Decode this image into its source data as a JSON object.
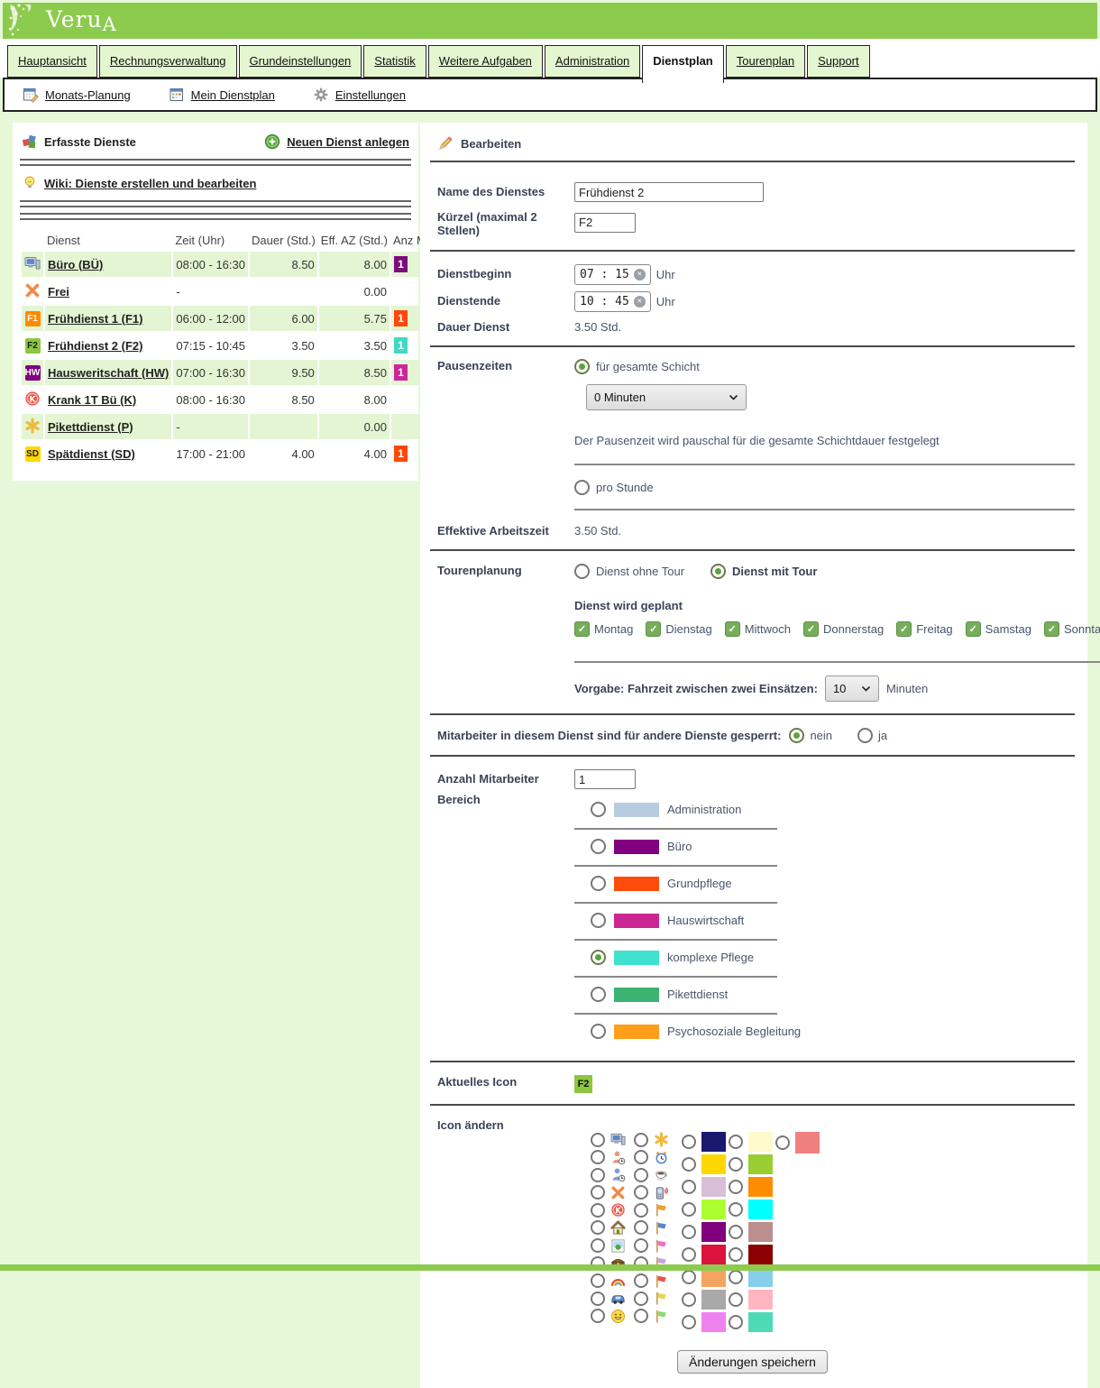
{
  "header": {
    "logo": "VeruA"
  },
  "tabs": [
    {
      "label": "Hauptansicht",
      "active": false
    },
    {
      "label": "Rechnungsverwaltung",
      "active": false
    },
    {
      "label": "Grundeinstellungen",
      "active": false
    },
    {
      "label": "Statistik",
      "active": false
    },
    {
      "label": "Weitere Aufgaben",
      "active": false
    },
    {
      "label": "Administration",
      "active": false
    },
    {
      "label": "Dienstplan",
      "active": true
    },
    {
      "label": "Tourenplan",
      "active": false
    },
    {
      "label": "Support",
      "active": false
    }
  ],
  "subnav": [
    {
      "label": "Monats-Planung",
      "icon": "calendar-edit"
    },
    {
      "label": "Mein Dienstplan",
      "icon": "calendar"
    },
    {
      "label": "Einstellungen",
      "icon": "gear"
    }
  ],
  "left_panel": {
    "title": "Erfasste Dienste",
    "new_link": "Neuen Dienst anlegen",
    "wiki_link": "Wiki: Dienste erstellen und bearbeiten",
    "table": {
      "headers": [
        "Dienst",
        "Zeit (Uhr)",
        "Dauer (Std.)",
        "Eff. AZ (Std.)",
        "Anz MA"
      ],
      "rows": [
        {
          "icon": "computer",
          "name": "Büro (BÜ)",
          "zeit": "08:00 - 16:30",
          "dauer": "8.50",
          "eff": "8.00",
          "badge": "1",
          "badge_color": "#7b0e7b"
        },
        {
          "icon": "x",
          "name": "Frei",
          "zeit": "-",
          "dauer": "",
          "eff": "0.00",
          "badge": "",
          "badge_color": ""
        },
        {
          "icon": "sq:F1:#ff8a00:#ffffff",
          "name": "Frühdienst 1 (F1)",
          "zeit": "06:00 - 12:00",
          "dauer": "6.00",
          "eff": "5.75",
          "badge": "1",
          "badge_color": "#ff4708"
        },
        {
          "icon": "sq:F2:#8dc63f:#1c1c1c",
          "name": "Frühdienst 2 (F2)",
          "zeit": "07:15 - 10:45",
          "dauer": "3.50",
          "eff": "3.50",
          "badge": "1",
          "badge_color": "#3fd9c5"
        },
        {
          "icon": "sq:HW:#800080:#ffffff",
          "name": "Hausweritschaft (HW)",
          "zeit": "07:00 - 16:30",
          "dauer": "9.50",
          "eff": "8.50",
          "badge": "1",
          "badge_color": "#cc2699"
        },
        {
          "icon": "k",
          "name": "Krank 1T Bü (K)",
          "zeit": "08:00 - 16:30",
          "dauer": "8.50",
          "eff": "8.00",
          "badge": "",
          "badge_color": ""
        },
        {
          "icon": "asterisk",
          "name": "Pikettdienst (P)",
          "zeit": "-",
          "dauer": "",
          "eff": "0.00",
          "badge": "",
          "badge_color": ""
        },
        {
          "icon": "sq:SD:#ffd700:#1c1c1c",
          "name": "Spätdienst (SD)",
          "zeit": "17:00 - 21:00",
          "dauer": "4.00",
          "eff": "4.00",
          "badge": "1",
          "badge_color": "#ff4708"
        }
      ]
    }
  },
  "form": {
    "title": "Bearbeiten",
    "name_label": "Name des Dienstes",
    "name_value": "Frühdienst 2",
    "kuerzel_label": "Kürzel (maximal 2 Stellen)",
    "kuerzel_value": "F2",
    "beginn_label": "Dienstbeginn",
    "beginn_value": "07 : 15",
    "ende_label": "Dienstende",
    "ende_value": "10 : 45",
    "uhr": "Uhr",
    "dauer_label": "Dauer Dienst",
    "dauer_value": "3.50 Std.",
    "pausen_label": "Pausenzeiten",
    "pause_radio1": "für gesamte Schicht",
    "pause_select": "0 Minuten",
    "pause_desc": "Der Pausenzeit wird pauschal für die gesamte Schichtdauer festgelegt",
    "pause_radio2": "pro Stunde",
    "eff_label": "Effektive Arbeitszeit",
    "eff_value": "3.50 Std.",
    "touren_label": "Tourenplanung",
    "tour_ohne": "Dienst ohne Tour",
    "tour_mit": "Dienst mit Tour",
    "geplant_label": "Dienst wird geplant",
    "days": [
      "Montag",
      "Dienstag",
      "Mittwoch",
      "Donnerstag",
      "Freitag",
      "Samstag",
      "Sonntag"
    ],
    "vorgabe_label": "Vorgabe: Fahrzeit zwischen zwei Einsätzen:",
    "fahrzeit_value": "10",
    "minuten": "Minuten",
    "gesperrt_label": "Mitarbeiter in diesem Dienst sind für andere Dienste gesperrt:",
    "nein": "nein",
    "ja": "ja",
    "anzahl_label": "Anzahl Mitarbeiter",
    "anzahl_value": "1",
    "bereich_label": "Bereich",
    "bereich_options": [
      {
        "label": "Administration",
        "color": "#b8cce0",
        "selected": false
      },
      {
        "label": "Büro",
        "color": "#800080",
        "selected": false
      },
      {
        "label": "Grundpflege",
        "color": "#ff4b0b",
        "selected": false
      },
      {
        "label": "Hauswirtschaft",
        "color": "#cc2693",
        "selected": false
      },
      {
        "label": "komplexe Pflege",
        "color": "#3fe0ce",
        "selected": true
      },
      {
        "label": "Pikettdienst",
        "color": "#3cb371",
        "selected": false
      },
      {
        "label": "Psychosoziale Begleitung",
        "color": "#ff9e1b",
        "selected": false
      }
    ],
    "aktuelles_label": "Aktuelles Icon",
    "aktuelles_icon_text": "F2",
    "aktuelles_icon_color": "#8dc63f",
    "icon_aendern_label": "Icon ändern",
    "save_button": "Änderungen speichern"
  },
  "icon_grid": {
    "picto_col1": [
      "computer",
      "person-orange",
      "person-blue",
      "x",
      "k",
      "house",
      "picture",
      "chest",
      "rainbow",
      "car",
      "smiley"
    ],
    "picto_col2": [
      "asterisk",
      "alarm",
      "coffee",
      "phone",
      "flag-orange",
      "flag-blue",
      "flag-pink",
      "flag-lavender",
      "flag-red",
      "flag-yellow",
      "flag-green"
    ],
    "color_col1": [
      "#191970",
      "#FFD700",
      "#D8BFD8",
      "#ADFF2F",
      "#800080",
      "#DC143C",
      "#F4A460",
      "#A9A9A9",
      "#EE82EE"
    ],
    "color_col2": [
      "#FFFACD",
      "#9ACD32",
      "#FF8C00",
      "#00FFFF",
      "#BC8F8F",
      "#8B0000",
      "#87CEEB",
      "#FFB6C1",
      "#4EDAB5"
    ],
    "color_col3": [
      "#F08080"
    ]
  }
}
